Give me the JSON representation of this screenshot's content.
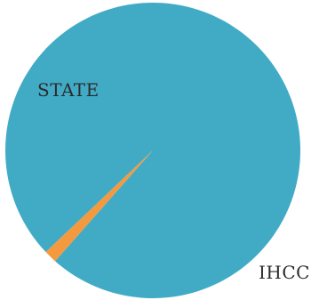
{
  "chart_data": {
    "type": "pie",
    "title": "",
    "start_angle_deg": 131.5,
    "direction": "counterclockwise",
    "slices": [
      {
        "label": "STATE",
        "value": 98.6,
        "color": "#41abc6"
      },
      {
        "label": "IHCC",
        "value": 1.4,
        "color": "#f5993f"
      }
    ],
    "legend": "none",
    "labels": "on-chart"
  }
}
